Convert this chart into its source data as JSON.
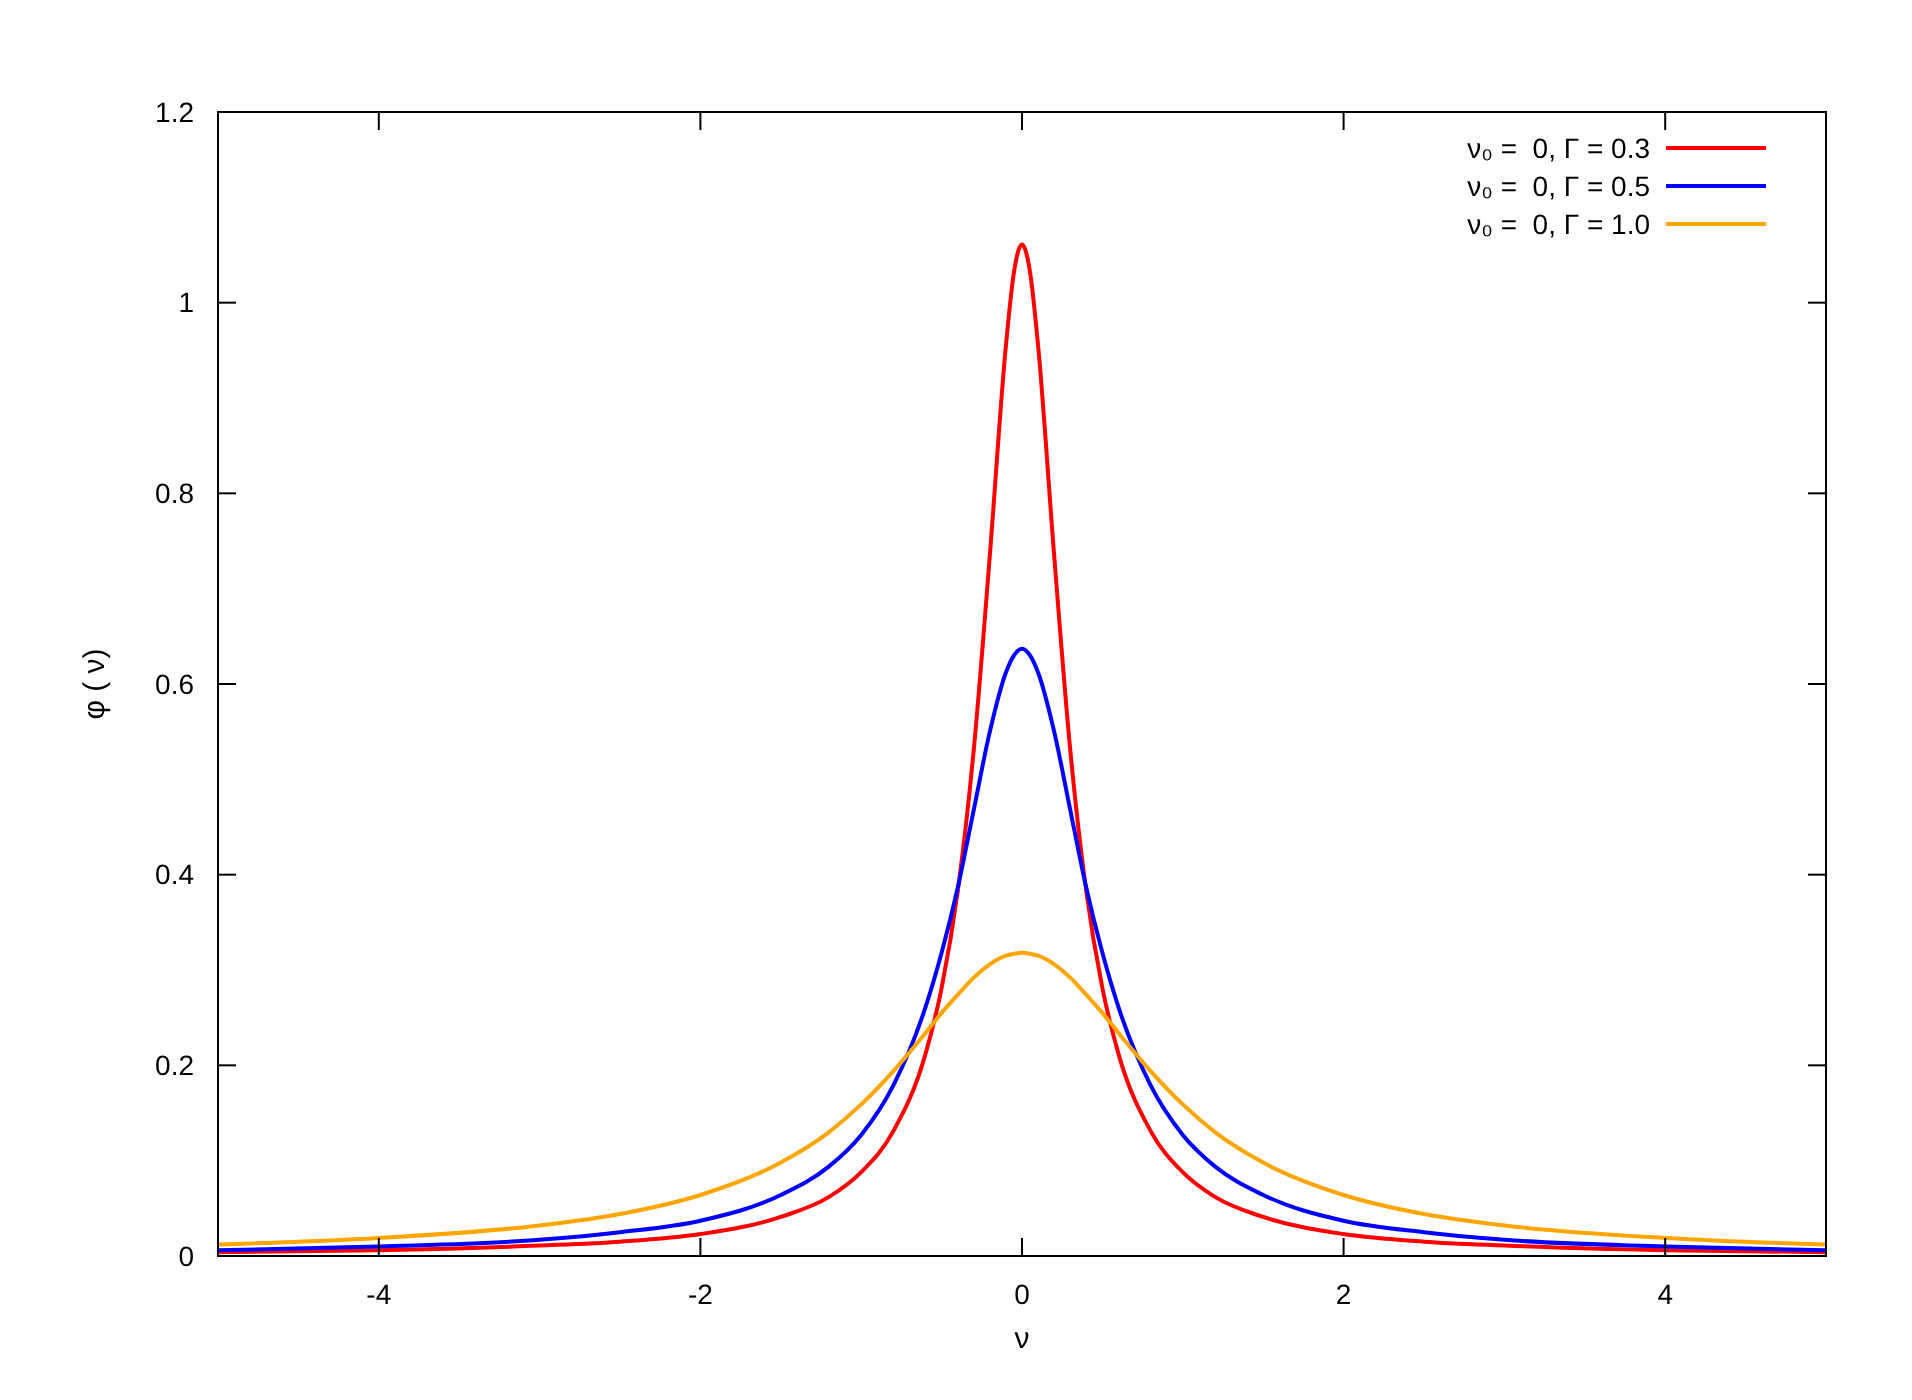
{
  "chart_data": {
    "type": "line",
    "xlabel": "ν",
    "ylabel": "φ ( ν)",
    "x": [
      -5,
      -4,
      -3,
      -2.5,
      -2,
      -1.5,
      -1.2,
      -1,
      -0.8,
      -0.6,
      -0.5,
      -0.4,
      -0.3,
      -0.2,
      -0.1,
      -0.05,
      0,
      0.05,
      0.1,
      0.2,
      0.3,
      0.4,
      0.5,
      0.6,
      0.8,
      1,
      1.2,
      1.5,
      2,
      2.5,
      3,
      4,
      5
    ],
    "series": [
      {
        "name": "ν₀ =  0, Γ = 0.3",
        "color": "#ff0000",
        "values": [
          0.004,
          0.006,
          0.011,
          0.015,
          0.023,
          0.041,
          0.062,
          0.088,
          0.131,
          0.212,
          0.281,
          0.382,
          0.531,
          0.735,
          0.955,
          1.032,
          1.061,
          1.032,
          0.955,
          0.735,
          0.531,
          0.382,
          0.281,
          0.212,
          0.131,
          0.088,
          0.062,
          0.041,
          0.023,
          0.015,
          0.011,
          0.006,
          0.004
        ]
      },
      {
        "name": "ν₀ =  0, Γ = 0.5",
        "color": "#0000ff",
        "values": [
          0.006,
          0.01,
          0.017,
          0.025,
          0.037,
          0.064,
          0.094,
          0.127,
          0.179,
          0.261,
          0.318,
          0.386,
          0.468,
          0.55,
          0.612,
          0.63,
          0.637,
          0.63,
          0.612,
          0.55,
          0.468,
          0.386,
          0.318,
          0.261,
          0.179,
          0.127,
          0.094,
          0.064,
          0.037,
          0.025,
          0.017,
          0.01,
          0.006
        ]
      },
      {
        "name": "ν₀ =  0, Γ = 1.0",
        "color": "#ffa500",
        "values": [
          0.012,
          0.019,
          0.032,
          0.044,
          0.064,
          0.098,
          0.13,
          0.159,
          0.194,
          0.234,
          0.255,
          0.274,
          0.292,
          0.306,
          0.315,
          0.317,
          0.318,
          0.317,
          0.315,
          0.306,
          0.292,
          0.274,
          0.255,
          0.234,
          0.194,
          0.159,
          0.13,
          0.098,
          0.064,
          0.044,
          0.032,
          0.019,
          0.012
        ]
      }
    ],
    "xlim": [
      -5,
      5
    ],
    "xticks": [
      -4,
      -2,
      0,
      2,
      4
    ],
    "ylim": [
      0,
      1.2
    ],
    "yticks": [
      0,
      0.2,
      0.4,
      0.6,
      0.8,
      1,
      1.2
    ],
    "grid": false,
    "legend": "top right",
    "marker": "none",
    "line_style": "solid"
  }
}
